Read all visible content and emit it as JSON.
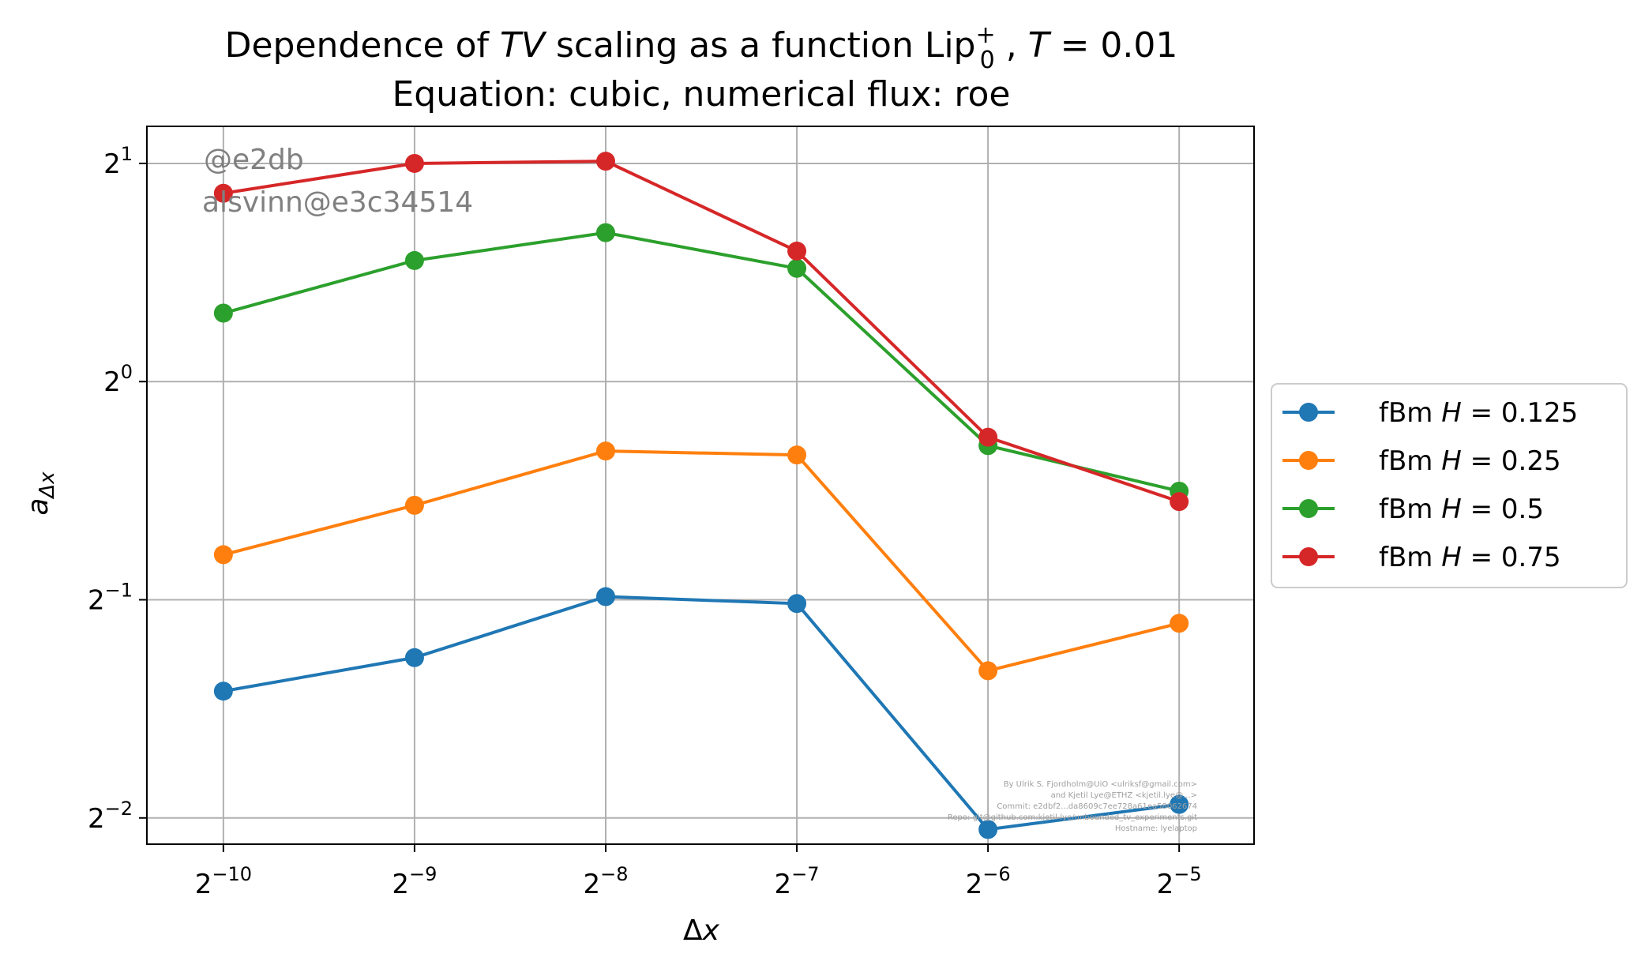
{
  "chart_data": {
    "type": "line",
    "title": {
      "prefix": "Dependence of ",
      "tv": "TV",
      "middle": " scaling as a function Lip",
      "lip_sup": "+",
      "lip_sub": "0",
      "sep": " , ",
      "t_var": "T",
      "t_rest": " = 0.01"
    },
    "subtitle": "Equation: cubic, numerical flux: roe",
    "xlabel": {
      "delta": "Δ",
      "var": "x"
    },
    "ylabel": {
      "var": "a",
      "sub": "Δx"
    },
    "x_scale": "log2",
    "y_scale": "log2",
    "x": [
      0.0009765625,
      0.001953125,
      0.00390625,
      0.0078125,
      0.015625,
      0.03125
    ],
    "x_ticks": [
      {
        "base": "2",
        "exp": "−10",
        "value": 0.0009765625
      },
      {
        "base": "2",
        "exp": "−9",
        "value": 0.001953125
      },
      {
        "base": "2",
        "exp": "−8",
        "value": 0.00390625
      },
      {
        "base": "2",
        "exp": "−7",
        "value": 0.0078125
      },
      {
        "base": "2",
        "exp": "−6",
        "value": 0.015625
      },
      {
        "base": "2",
        "exp": "−5",
        "value": 0.03125
      }
    ],
    "y_ticks": [
      {
        "base": "2",
        "exp": "1",
        "value": 2
      },
      {
        "base": "2",
        "exp": "0",
        "value": 1
      },
      {
        "base": "2",
        "exp": "−1",
        "value": 0.5
      },
      {
        "base": "2",
        "exp": "−2",
        "value": 0.25
      }
    ],
    "xlim": [
      0.00074,
      0.041
    ],
    "ylim": [
      0.23,
      2.25
    ],
    "grid": true,
    "legend_position": "right-outside",
    "series": [
      {
        "prefix": "fBm ",
        "var": "H",
        "rest": " = 0.125",
        "color": "#1f77b4",
        "values": [
          0.374,
          0.416,
          0.505,
          0.494,
          0.241,
          0.261
        ]
      },
      {
        "prefix": "fBm ",
        "var": "H",
        "rest": " = 0.25",
        "color": "#ff7f0e",
        "values": [
          0.577,
          0.675,
          0.802,
          0.792,
          0.399,
          0.464
        ]
      },
      {
        "prefix": "fBm ",
        "var": "H",
        "rest": " = 0.5",
        "color": "#2ca02c",
        "values": [
          1.243,
          1.469,
          1.605,
          1.433,
          0.816,
          0.706
        ]
      },
      {
        "prefix": "fBm ",
        "var": "H",
        "rest": " = 0.75",
        "color": "#d62728",
        "values": [
          1.819,
          2.0,
          2.014,
          1.514,
          0.838,
          0.683
        ]
      }
    ],
    "annotations": {
      "db": "@e2db",
      "build": "alsvinn@e3c34514",
      "credits": [
        "By Ulrik S. Fjordholm@UiO <ulriksf@gmail.com>",
        "and Kjetil Lye@ETHZ <kjetil.lye@...>",
        "Commit: e2dbf2...da8609c7ee728a61ea58062674",
        "Repo: git@github.com:kjetil-lye/unbounded_tv_experiments.git",
        "Hostname: lyelaptop"
      ]
    }
  }
}
